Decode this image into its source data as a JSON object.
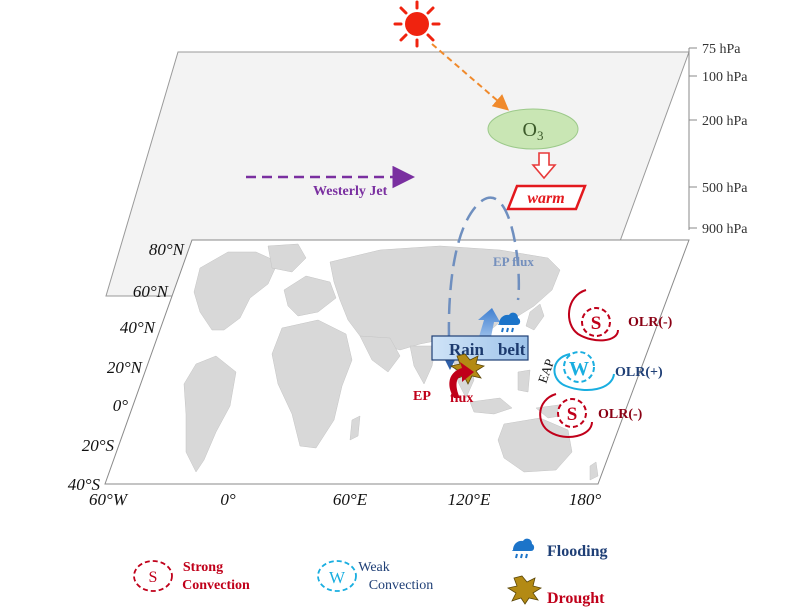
{
  "sun_icon": "sun-icon",
  "ozone": {
    "base": "O",
    "sub": "3"
  },
  "warm": "warm",
  "westerly_jet": "Westerly Jet",
  "ep_flux_upper": "EP flux",
  "ep_flux_lower": {
    "ep": "EP",
    "flux": "flux"
  },
  "rain_belt": {
    "rain": "Rain",
    "belt": "belt"
  },
  "eap": "EAP",
  "pressure_levels": [
    "75 hPa",
    "100 hPa",
    "200 hPa",
    "500 hPa",
    "900 hPa"
  ],
  "latitudes": [
    "80°N",
    "60°N",
    "40°N",
    "20°N",
    "0°",
    "20°S",
    "40°S"
  ],
  "longitudes": [
    "60°W",
    "0°",
    "60°E",
    "120°E",
    "180°"
  ],
  "centers": [
    {
      "letter": "S",
      "label": "OLR(-)"
    },
    {
      "letter": "W",
      "label": "OLR(+)"
    },
    {
      "letter": "S",
      "label": "OLR(-)"
    }
  ],
  "legend": {
    "strong": {
      "letter": "S",
      "line1": "Strong",
      "line2": "Convection"
    },
    "weak": {
      "letter": "W",
      "line1": "Weak",
      "line2": "Convection"
    },
    "flooding": "Flooding",
    "drought": "Drought"
  },
  "colors": {
    "strong": "#c0001a",
    "weak": "#19aee0",
    "jet": "#7a2fa0",
    "ep_arc": "#6f8fbf",
    "ozone_fill": "#c9e6b4",
    "plane_fill": "#f2f2f2",
    "land": "#d6d6d6",
    "flood": "#1c74c9",
    "drought": "#b38a14"
  }
}
